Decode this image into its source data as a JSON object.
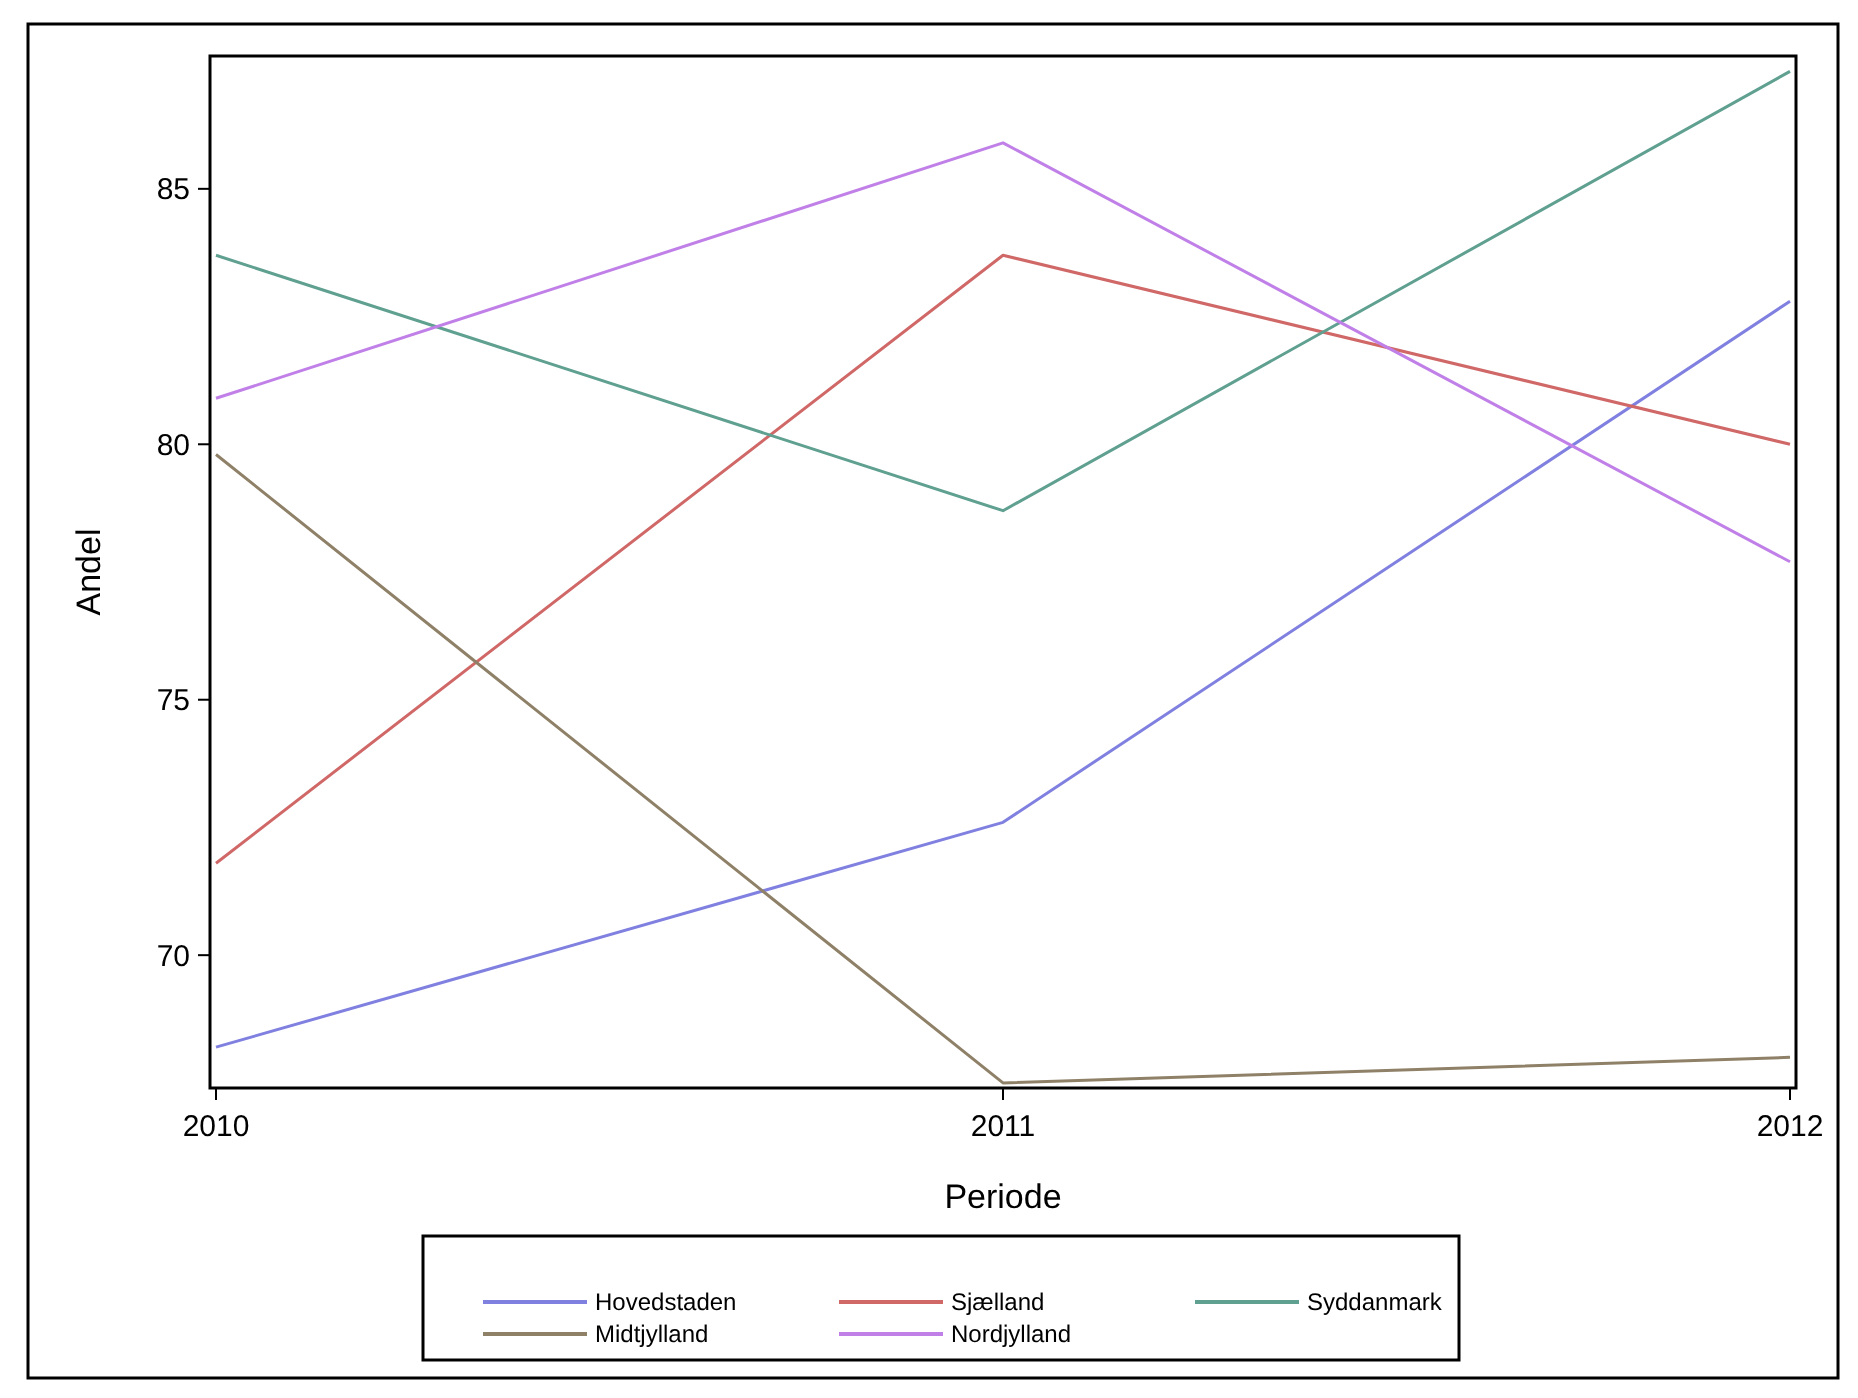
{
  "chart_data": {
    "type": "line",
    "xlabel": "Periode",
    "ylabel": "Andel",
    "x": [
      2010,
      2011,
      2012
    ],
    "xlim": [
      2010,
      2012
    ],
    "xticks": [
      2010,
      2011,
      2012
    ],
    "ylim": [
      67.4,
      87.6
    ],
    "yticks": [
      70,
      75,
      80,
      85
    ],
    "grid": false,
    "legend": "bottom",
    "marker": "none",
    "line_style": "solid",
    "series": [
      {
        "name": "Hovedstaden",
        "color": "#8080e0",
        "values": [
          68.2,
          72.6,
          82.8
        ]
      },
      {
        "name": "Sjælland",
        "color": "#d06868",
        "values": [
          71.8,
          83.7,
          80.0
        ]
      },
      {
        "name": "Syddanmark",
        "color": "#5fa090",
        "values": [
          83.7,
          78.7,
          87.3
        ]
      },
      {
        "name": "Midtjylland",
        "color": "#8f8068",
        "values": [
          79.8,
          67.5,
          68.0
        ]
      },
      {
        "name": "Nordjylland",
        "color": "#c080e8",
        "values": [
          80.9,
          85.9,
          77.7
        ]
      }
    ]
  }
}
